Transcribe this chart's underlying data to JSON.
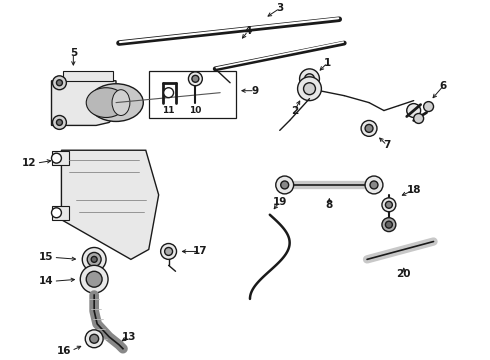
{
  "bg_white": "#ffffff",
  "line_color": "#1a1a1a",
  "gray_fill": "#d0d0d0",
  "light_gray": "#e8e8e8",
  "fig_width": 4.9,
  "fig_height": 3.6,
  "dpi": 100
}
